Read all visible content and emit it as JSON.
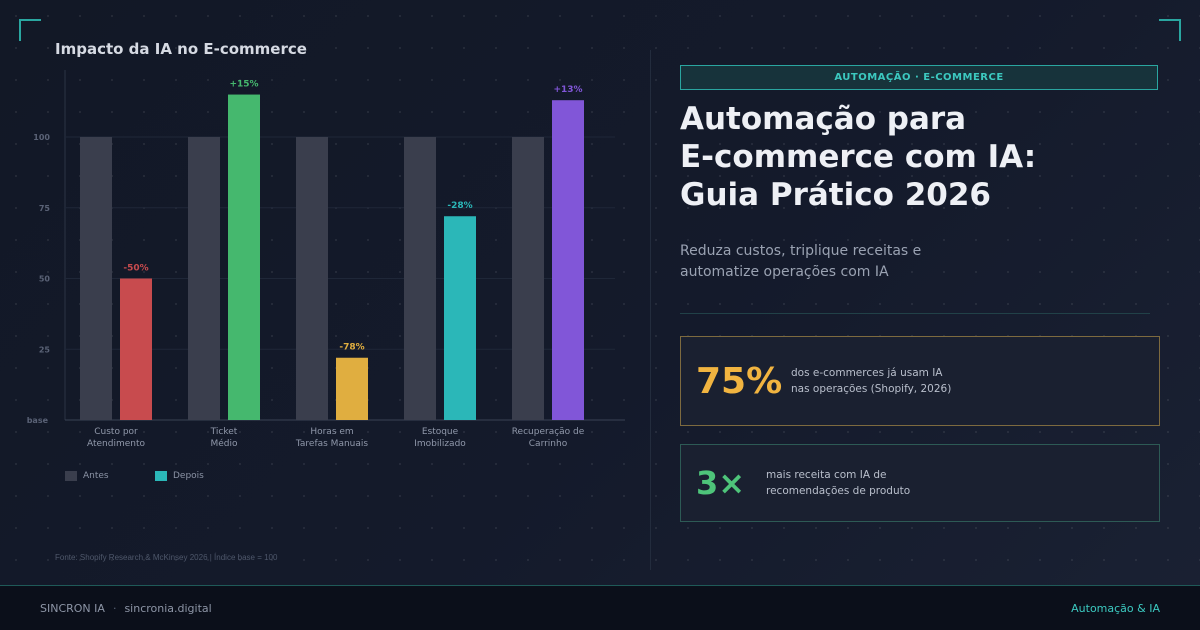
{
  "chart_data": {
    "type": "bar",
    "title": "Impacto da IA no E-commerce",
    "categories": [
      [
        "Custo por",
        "Atendimento"
      ],
      [
        "Ticket",
        "Médio"
      ],
      [
        "Horas em",
        "Tarefas Manuais"
      ],
      [
        "Estoque",
        "Imobilizado"
      ],
      [
        "Recuperação de",
        "Carrinho"
      ]
    ],
    "series": [
      {
        "name": "Antes",
        "values": [
          100,
          100,
          100,
          100,
          100
        ],
        "color": "#3a3e4d"
      },
      {
        "name": "Depois",
        "values": [
          50,
          115,
          22,
          72,
          113
        ],
        "colors": [
          "#c84b4e",
          "#45b86e",
          "#e0ae40",
          "#2bb7b8",
          "#8156d8"
        ]
      }
    ],
    "data_labels": [
      "-50%",
      "+15%",
      "-78%",
      "-28%",
      "+13%"
    ],
    "yticks": [
      100,
      75,
      50,
      25
    ],
    "y_base_label": "base",
    "ylim": [
      0,
      125
    ],
    "grid": true,
    "legend": "bottom-left",
    "source": "Fonte: Shopify Research & McKinsey 2026 | Índice base = 100"
  },
  "tag": "AUTOMAÇÃO · E-COMMERCE",
  "headline": [
    "Automação para",
    "E-commerce com IA:",
    "Guia Prático 2026"
  ],
  "subtitle": [
    "Reduza custos, triplique receitas e",
    "automatize operações com IA"
  ],
  "stats": [
    {
      "value": "75%",
      "desc": [
        "dos e-commerces já usam IA",
        "nas operações (Shopify, 2026)"
      ]
    },
    {
      "value": "3×",
      "desc": [
        "mais receita com IA de",
        "recomendações de produto"
      ]
    }
  ],
  "footer": {
    "brand": "SINCRON IA",
    "site": "sincronia.digital",
    "sep": "·",
    "right": "Automação & IA"
  },
  "colors": {
    "accent": "#2aa6a0",
    "gold": "#f1b440",
    "green": "#4ec47a"
  }
}
